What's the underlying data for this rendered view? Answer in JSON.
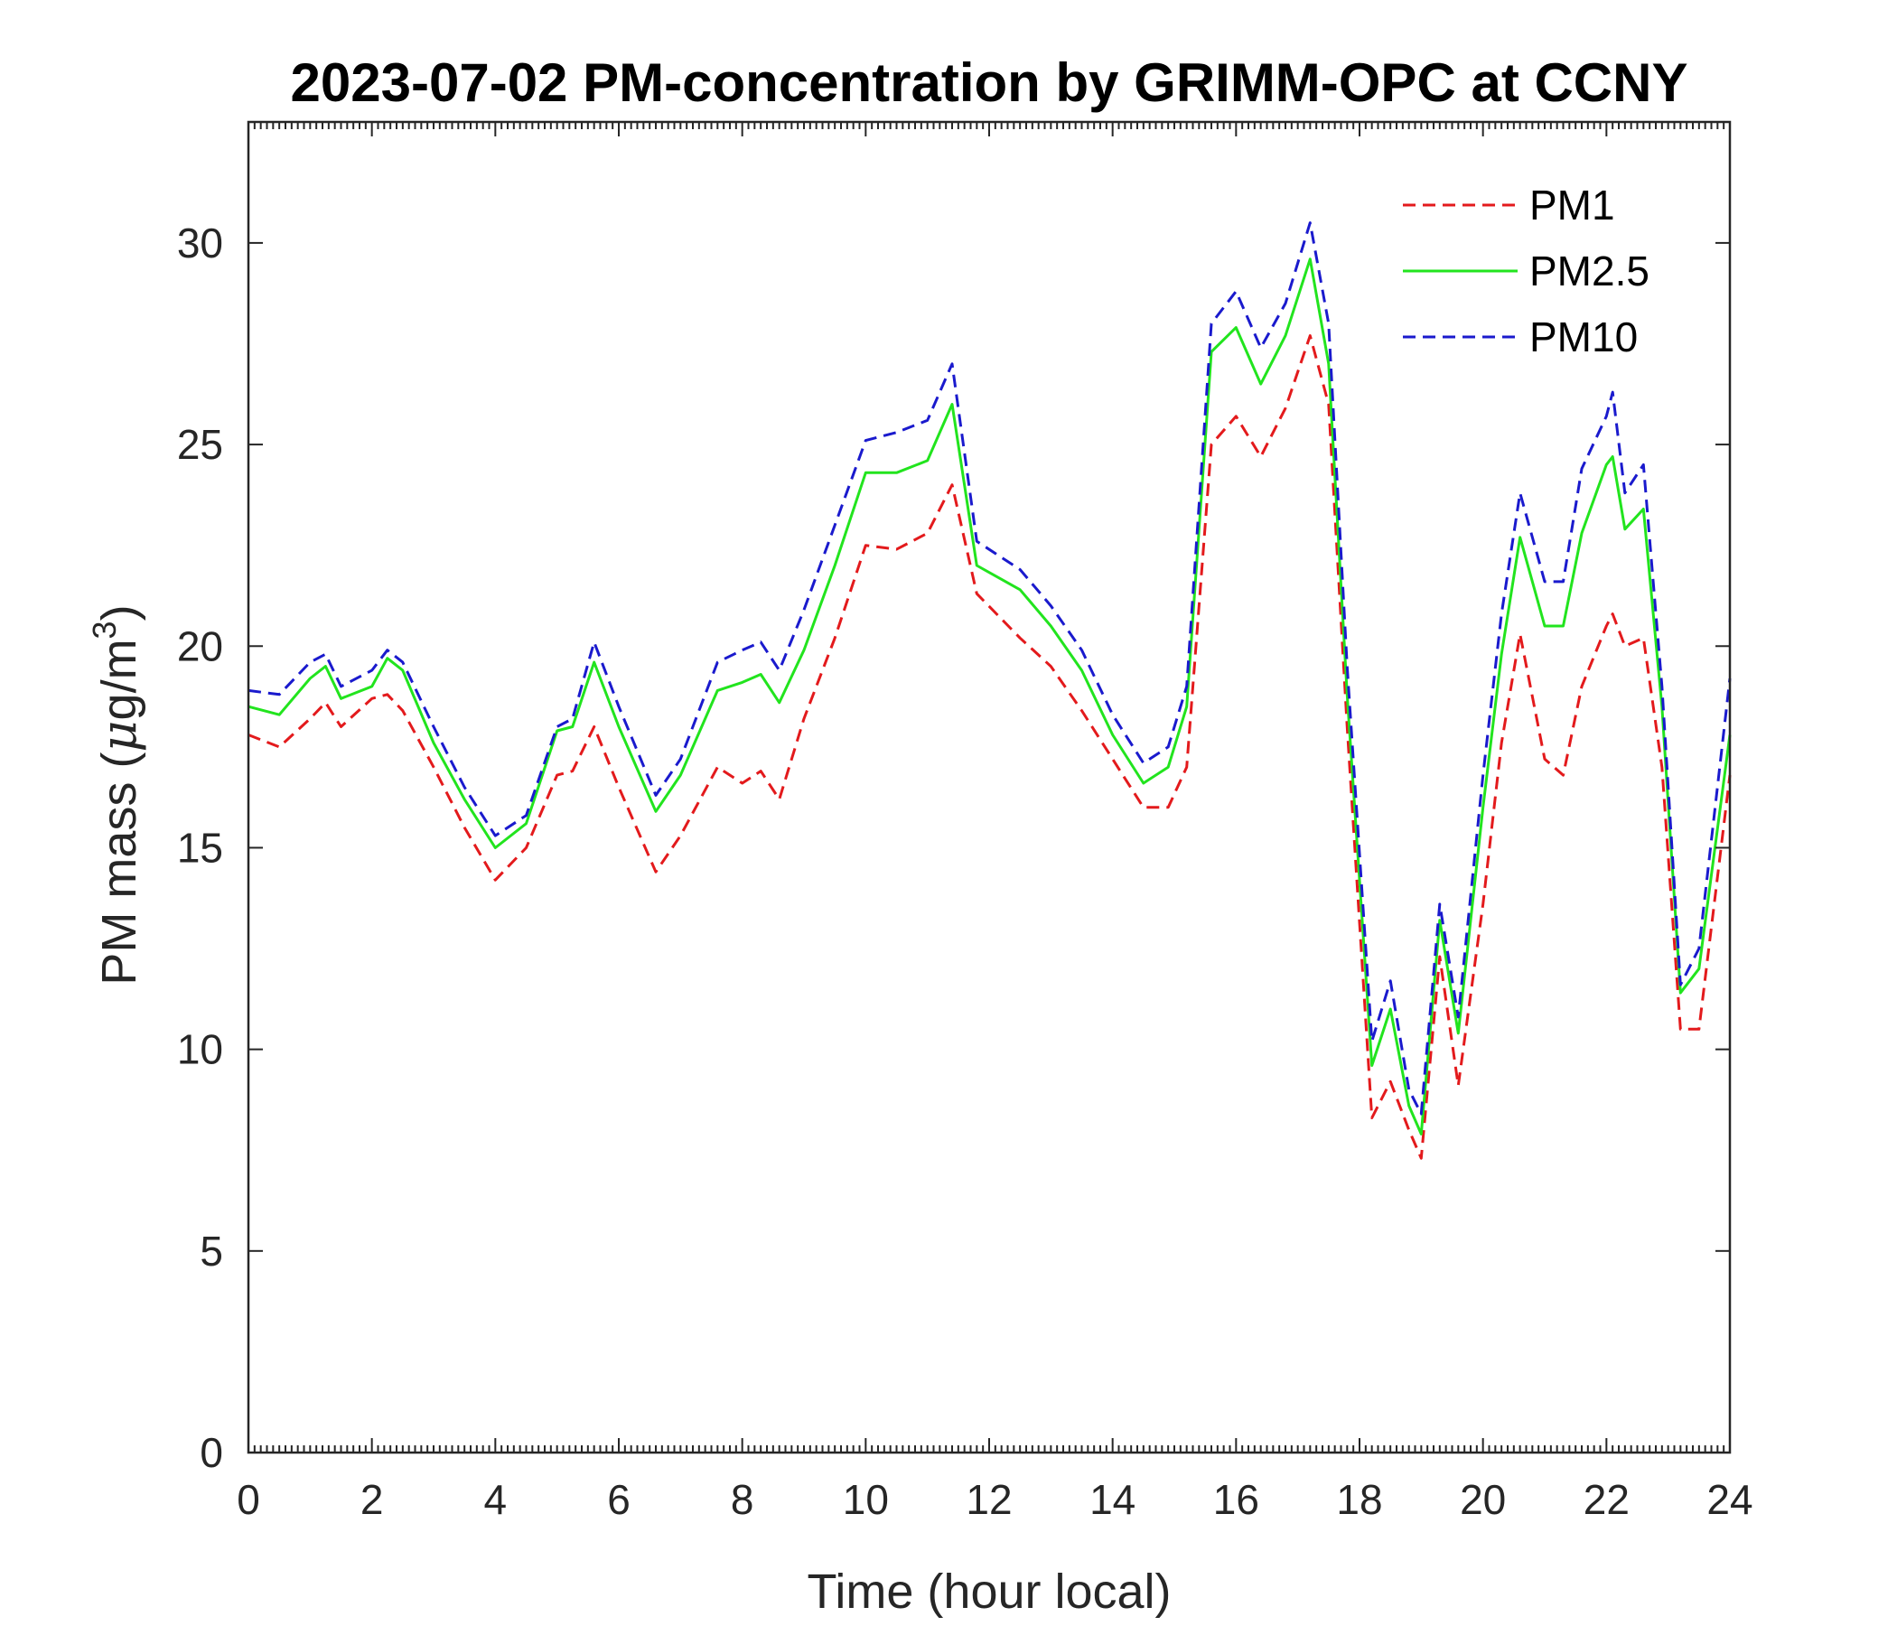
{
  "chart_data": {
    "type": "line",
    "title": "2023-07-02 PM-concentration by GRIMM-OPC at CCNY",
    "xlabel": "Time (hour local)",
    "ylabel_text": "PM mass (",
    "ylabel_unit_mu": "μ",
    "ylabel_unit_rest": "g/m",
    "ylabel_unit_sup": "3",
    "ylabel_close": ")",
    "xlim": [
      0,
      24
    ],
    "ylim": [
      0,
      33
    ],
    "xticks": [
      0,
      2,
      4,
      6,
      8,
      10,
      12,
      14,
      16,
      18,
      20,
      22,
      24
    ],
    "xtick_labels": [
      "0",
      "2",
      "4",
      "6",
      "8",
      "10",
      "12",
      "14",
      "16",
      "18",
      "20",
      "22",
      "24"
    ],
    "yticks": [
      0,
      5,
      10,
      15,
      20,
      25,
      30
    ],
    "ytick_labels": [
      "0",
      "5",
      "10",
      "15",
      "20",
      "25",
      "30"
    ],
    "grid": false,
    "legend_position": "top-right",
    "x": [
      0,
      0.5,
      1,
      1.25,
      1.5,
      2,
      2.25,
      2.5,
      3,
      3.5,
      4,
      4.5,
      5,
      5.25,
      5.6,
      6,
      6.6,
      7,
      7.6,
      8,
      8.3,
      8.6,
      9,
      9.5,
      10,
      10.5,
      11,
      11.4,
      11.8,
      12.5,
      13,
      13.5,
      14,
      14.5,
      14.9,
      15.2,
      15.6,
      16,
      16.4,
      16.8,
      17.2,
      17.5,
      17.8,
      18.2,
      18.5,
      18.8,
      19,
      19.3,
      19.6,
      20,
      20.3,
      20.6,
      21,
      21.3,
      21.6,
      22,
      22.1,
      22.3,
      22.6,
      22.9,
      23.2,
      23.5,
      24
    ],
    "series": [
      {
        "name": "PM1",
        "color": "#e31a1c",
        "style": "dashed",
        "values": [
          17.8,
          17.5,
          18.2,
          18.6,
          18.0,
          18.7,
          18.8,
          18.4,
          17.0,
          15.5,
          14.2,
          15.0,
          16.8,
          16.9,
          18.0,
          16.5,
          14.4,
          15.3,
          17.0,
          16.6,
          16.9,
          16.2,
          18.2,
          20.2,
          22.5,
          22.4,
          22.8,
          24.0,
          21.3,
          20.2,
          19.5,
          18.4,
          17.2,
          16.0,
          16.0,
          17.0,
          25.0,
          25.7,
          24.7,
          25.9,
          27.7,
          26.0,
          18.0,
          8.3,
          9.2,
          8.0,
          7.3,
          12.3,
          9.1,
          13.6,
          17.6,
          20.3,
          17.2,
          16.8,
          19.0,
          20.5,
          20.8,
          20.0,
          20.2,
          17.0,
          10.5,
          10.5,
          16.8
        ]
      },
      {
        "name": "PM2.5",
        "color": "#22e41e",
        "style": "solid",
        "values": [
          18.5,
          18.3,
          19.2,
          19.5,
          18.7,
          19.0,
          19.7,
          19.4,
          17.6,
          16.2,
          15.0,
          15.6,
          17.9,
          18.0,
          19.6,
          18.0,
          15.9,
          16.8,
          18.9,
          19.1,
          19.3,
          18.6,
          19.9,
          22.0,
          24.3,
          24.3,
          24.6,
          26.0,
          22.0,
          21.4,
          20.5,
          19.4,
          17.8,
          16.6,
          17.0,
          18.5,
          27.3,
          27.9,
          26.5,
          27.7,
          29.6,
          27.0,
          18.8,
          9.6,
          11.0,
          8.6,
          7.9,
          13.2,
          10.4,
          16.0,
          19.8,
          22.7,
          20.5,
          20.5,
          22.8,
          24.5,
          24.7,
          22.9,
          23.4,
          18.5,
          11.4,
          12.0,
          17.8
        ]
      },
      {
        "name": "PM10",
        "color": "#1a1acd",
        "style": "dashed",
        "values": [
          18.9,
          18.8,
          19.6,
          19.8,
          19.0,
          19.4,
          19.9,
          19.6,
          18.0,
          16.5,
          15.3,
          15.8,
          18.0,
          18.2,
          20.1,
          18.5,
          16.3,
          17.2,
          19.6,
          19.9,
          20.1,
          19.4,
          20.9,
          23.0,
          25.1,
          25.3,
          25.6,
          27.0,
          22.6,
          21.9,
          21.0,
          19.9,
          18.3,
          17.1,
          17.5,
          19.0,
          28.0,
          28.8,
          27.4,
          28.5,
          30.5,
          28.0,
          19.5,
          10.2,
          11.7,
          9.0,
          8.4,
          13.6,
          10.8,
          16.8,
          20.8,
          23.8,
          21.6,
          21.6,
          24.4,
          25.7,
          26.3,
          23.8,
          24.5,
          19.0,
          11.6,
          12.5,
          19.2
        ]
      }
    ]
  }
}
